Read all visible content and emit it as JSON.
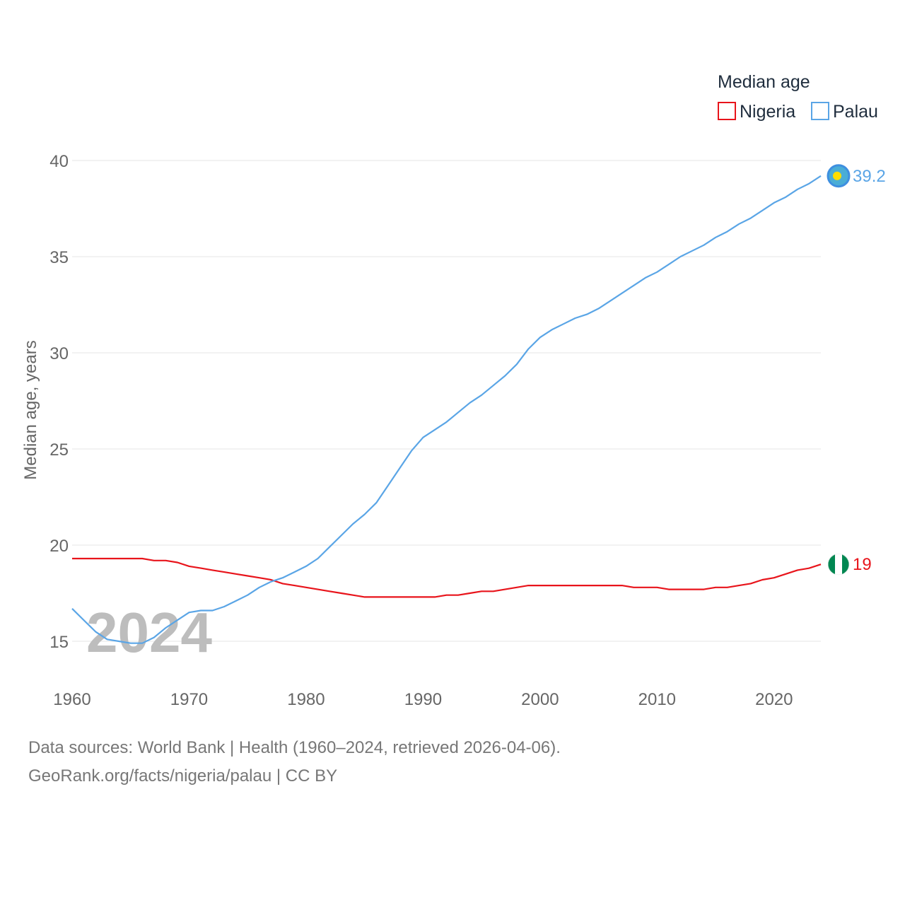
{
  "chart_data": {
    "type": "line",
    "legend_title": "Median age",
    "ylabel": "Median age, years",
    "xlabel": "",
    "xlim": [
      1960,
      2024
    ],
    "ylim": [
      15,
      40
    ],
    "yticks": [
      15,
      20,
      25,
      30,
      35,
      40
    ],
    "xticks": [
      1960,
      1970,
      1980,
      1990,
      2000,
      2010,
      2020
    ],
    "watermark_year": "2024",
    "legend_position": "top-right",
    "series": [
      {
        "name": "Nigeria",
        "color": "#e8141b",
        "end_label": "19",
        "flag_icon": "nigeria-flag-icon",
        "x": [
          1960,
          1961,
          1962,
          1963,
          1964,
          1965,
          1966,
          1967,
          1968,
          1969,
          1970,
          1971,
          1972,
          1973,
          1974,
          1975,
          1976,
          1977,
          1978,
          1979,
          1980,
          1981,
          1982,
          1983,
          1984,
          1985,
          1986,
          1987,
          1988,
          1989,
          1990,
          1991,
          1992,
          1993,
          1994,
          1995,
          1996,
          1997,
          1998,
          1999,
          2000,
          2001,
          2002,
          2003,
          2004,
          2005,
          2006,
          2007,
          2008,
          2009,
          2010,
          2011,
          2012,
          2013,
          2014,
          2015,
          2016,
          2017,
          2018,
          2019,
          2020,
          2021,
          2022,
          2023,
          2024
        ],
        "values": [
          19.3,
          19.3,
          19.3,
          19.3,
          19.3,
          19.3,
          19.3,
          19.2,
          19.2,
          19.1,
          18.9,
          18.8,
          18.7,
          18.6,
          18.5,
          18.4,
          18.3,
          18.2,
          18.0,
          17.9,
          17.8,
          17.7,
          17.6,
          17.5,
          17.4,
          17.3,
          17.3,
          17.3,
          17.3,
          17.3,
          17.3,
          17.3,
          17.4,
          17.4,
          17.5,
          17.6,
          17.6,
          17.7,
          17.8,
          17.9,
          17.9,
          17.9,
          17.9,
          17.9,
          17.9,
          17.9,
          17.9,
          17.9,
          17.8,
          17.8,
          17.8,
          17.7,
          17.7,
          17.7,
          17.7,
          17.8,
          17.8,
          17.9,
          18.0,
          18.2,
          18.3,
          18.5,
          18.7,
          18.8,
          19.0
        ]
      },
      {
        "name": "Palau",
        "color": "#5aa5e6",
        "end_label": "39.2",
        "flag_icon": "palau-flag-icon",
        "x": [
          1960,
          1961,
          1962,
          1963,
          1964,
          1965,
          1966,
          1967,
          1968,
          1969,
          1970,
          1971,
          1972,
          1973,
          1974,
          1975,
          1976,
          1977,
          1978,
          1979,
          1980,
          1981,
          1982,
          1983,
          1984,
          1985,
          1986,
          1987,
          1988,
          1989,
          1990,
          1991,
          1992,
          1993,
          1994,
          1995,
          1996,
          1997,
          1998,
          1999,
          2000,
          2001,
          2002,
          2003,
          2004,
          2005,
          2006,
          2007,
          2008,
          2009,
          2010,
          2011,
          2012,
          2013,
          2014,
          2015,
          2016,
          2017,
          2018,
          2019,
          2020,
          2021,
          2022,
          2023,
          2024
        ],
        "values": [
          16.7,
          16.1,
          15.5,
          15.1,
          15.0,
          14.9,
          14.9,
          15.2,
          15.7,
          16.1,
          16.5,
          16.6,
          16.6,
          16.8,
          17.1,
          17.4,
          17.8,
          18.1,
          18.3,
          18.6,
          18.9,
          19.3,
          19.9,
          20.5,
          21.1,
          21.6,
          22.2,
          23.1,
          24.0,
          24.9,
          25.6,
          26.0,
          26.4,
          26.9,
          27.4,
          27.8,
          28.3,
          28.8,
          29.4,
          30.2,
          30.8,
          31.2,
          31.5,
          31.8,
          32.0,
          32.3,
          32.7,
          33.1,
          33.5,
          33.9,
          34.2,
          34.6,
          35.0,
          35.3,
          35.6,
          36.0,
          36.3,
          36.7,
          37.0,
          37.4,
          37.8,
          38.1,
          38.5,
          38.8,
          39.2
        ]
      }
    ]
  },
  "footer": {
    "sources": "Data sources: World Bank | Health (1960–2024, retrieved 2026-04-06).",
    "link": "GeoRank.org/facts/nigeria/palau | CC BY"
  }
}
